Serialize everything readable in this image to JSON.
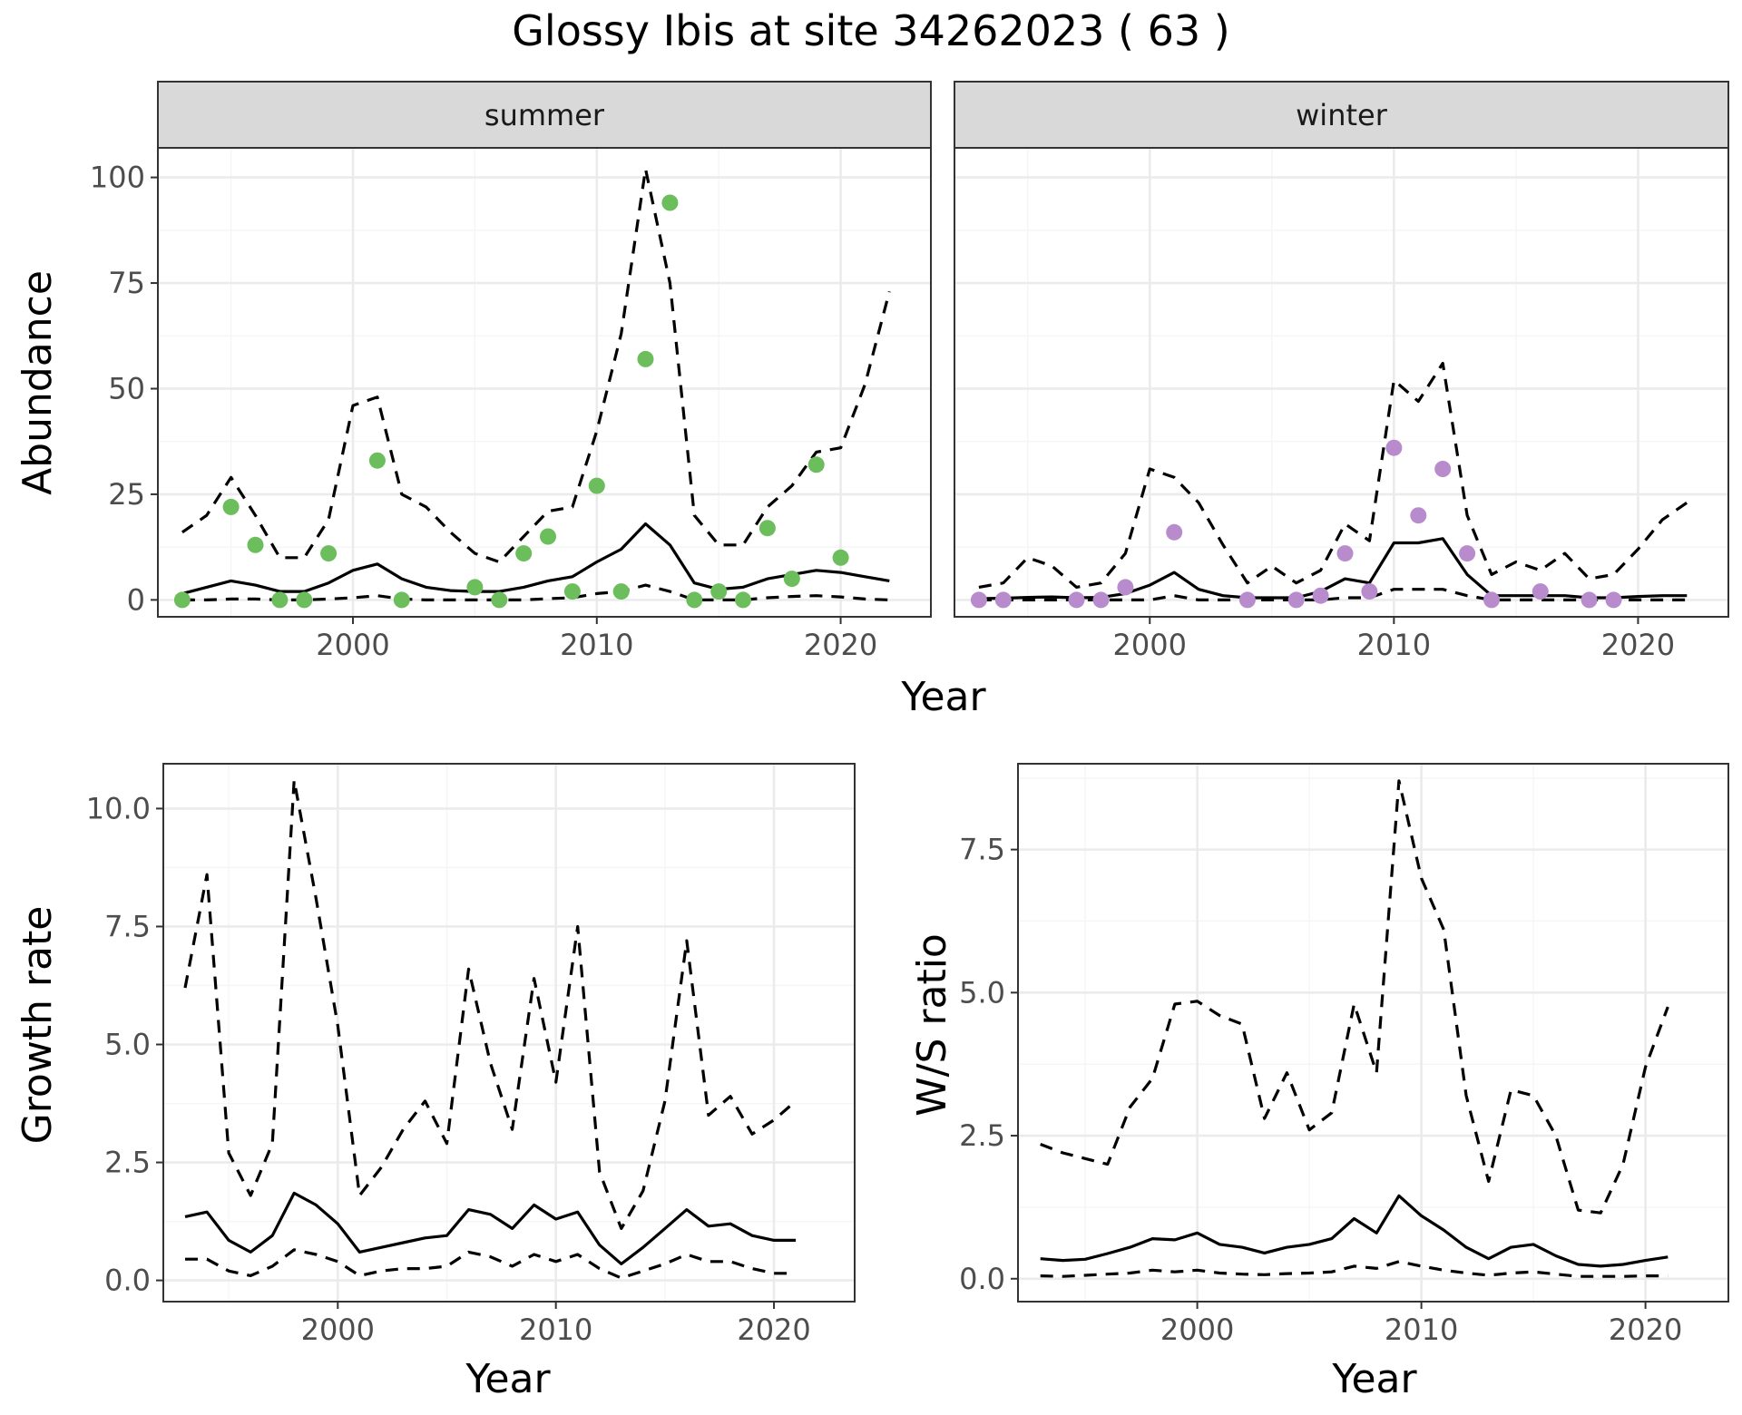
{
  "figure": {
    "title": "Glossy Ibis at site 34262023 ( 63 )"
  },
  "colors": {
    "summer_points": "#6cbd5c",
    "winter_points": "#b88ccc",
    "lines": "#000000",
    "grid_major": "#ebebeb",
    "grid_minor": "#f5f5f5",
    "strip_fill": "#d9d9d9",
    "panel_border": "#333333"
  },
  "chart_data": [
    {
      "id": "abundance",
      "type": "line",
      "panels": [
        "summer",
        "winter"
      ],
      "xlabel": "Year",
      "ylabel": "Abundance",
      "xlim": [
        1992,
        2023.7
      ],
      "ylim": [
        -4,
        107
      ],
      "xticks": [
        2000,
        2010,
        2020
      ],
      "yticks": [
        0,
        25,
        50,
        75,
        100
      ],
      "grid": true,
      "facets": [
        {
          "name": "summer",
          "point_color": "#6cbd5c",
          "median": {
            "x": [
              1993,
              1994,
              1995,
              1996,
              1997,
              1998,
              1999,
              2000,
              2001,
              2002,
              2003,
              2004,
              2005,
              2006,
              2007,
              2008,
              2009,
              2010,
              2011,
              2012,
              2013,
              2014,
              2015,
              2016,
              2017,
              2018,
              2019,
              2020,
              2021,
              2022
            ],
            "y": [
              1.5,
              3,
              4.5,
              3.5,
              2,
              2,
              4,
              7,
              8.5,
              5,
              3,
              2.2,
              2,
              2,
              3,
              4.5,
              5.5,
              9,
              12,
              18,
              13,
              4,
              2.5,
              3,
              5,
              6,
              7,
              6.5,
              5.5,
              4.5
            ]
          },
          "upper": {
            "x": [
              1993,
              1994,
              1995,
              1996,
              1997,
              1998,
              1999,
              2000,
              2001,
              2002,
              2003,
              2004,
              2005,
              2006,
              2007,
              2008,
              2009,
              2010,
              2011,
              2012,
              2013,
              2014,
              2015,
              2016,
              2017,
              2018,
              2019,
              2020,
              2021,
              2022
            ],
            "y": [
              16,
              20,
              29,
              20,
              10,
              10,
              19,
              46,
              48,
              25,
              22,
              16,
              11,
              9,
              15,
              21,
              22,
              40,
              63,
              102,
              75,
              20,
              13,
              13,
              22,
              27,
              35,
              36,
              51,
              73
            ]
          },
          "lower": {
            "x": [
              1993,
              1994,
              1995,
              1996,
              1997,
              1998,
              1999,
              2000,
              2001,
              2002,
              2003,
              2004,
              2005,
              2006,
              2007,
              2008,
              2009,
              2010,
              2011,
              2012,
              2013,
              2014,
              2015,
              2016,
              2017,
              2018,
              2019,
              2020,
              2021,
              2022
            ],
            "y": [
              0,
              0,
              0.2,
              0.2,
              0,
              0,
              0.2,
              0.5,
              1,
              0.2,
              0,
              0,
              0,
              0,
              0,
              0.3,
              0.5,
              1.5,
              2,
              3.5,
              2,
              0,
              0,
              0,
              0.5,
              0.8,
              1,
              0.7,
              0.2,
              0
            ]
          },
          "observed": {
            "x": [
              1993,
              1995,
              1996,
              1997,
              1998,
              1999,
              2001,
              2002,
              2005,
              2006,
              2007,
              2008,
              2009,
              2010,
              2011,
              2012,
              2013,
              2014,
              2015,
              2016,
              2017,
              2018,
              2019,
              2020
            ],
            "y": [
              0,
              22,
              13,
              0,
              0,
              11,
              33,
              0,
              3,
              0,
              11,
              15,
              2,
              27,
              2,
              57,
              94,
              0,
              2,
              0,
              17,
              5,
              32,
              10
            ]
          }
        },
        {
          "name": "winter",
          "point_color": "#b88ccc",
          "median": {
            "x": [
              1993,
              1994,
              1995,
              1996,
              1997,
              1998,
              1999,
              2000,
              2001,
              2002,
              2003,
              2004,
              2005,
              2006,
              2007,
              2008,
              2009,
              2010,
              2011,
              2012,
              2013,
              2014,
              2015,
              2016,
              2017,
              2018,
              2019,
              2020,
              2021,
              2022
            ],
            "y": [
              0.3,
              0.4,
              0.6,
              0.7,
              0.5,
              0.6,
              1.5,
              3.5,
              6.5,
              2.5,
              1,
              0.5,
              0.5,
              0.5,
              2,
              5,
              4,
              13.5,
              13.5,
              14.5,
              6,
              1,
              1,
              1,
              1,
              0.5,
              0.5,
              0.8,
              1,
              1
            ]
          },
          "upper": {
            "x": [
              1993,
              1994,
              1995,
              1996,
              1997,
              1998,
              1999,
              2000,
              2001,
              2002,
              2003,
              2004,
              2005,
              2006,
              2007,
              2008,
              2009,
              2010,
              2011,
              2012,
              2013,
              2014,
              2015,
              2016,
              2017,
              2018,
              2019,
              2020,
              2021,
              2022
            ],
            "y": [
              3,
              4,
              10,
              8,
              3,
              4,
              11,
              31,
              29,
              23,
              13,
              4,
              8,
              4,
              7,
              18,
              14,
              52,
              47,
              56,
              20,
              6,
              9,
              7,
              11,
              5,
              6,
              12,
              19,
              23
            ]
          },
          "lower": {
            "x": [
              1993,
              1994,
              1995,
              1996,
              1997,
              1998,
              1999,
              2000,
              2001,
              2002,
              2003,
              2004,
              2005,
              2006,
              2007,
              2008,
              2009,
              2010,
              2011,
              2012,
              2013,
              2014,
              2015,
              2016,
              2017,
              2018,
              2019,
              2020,
              2021,
              2022
            ],
            "y": [
              0,
              0,
              0,
              0,
              0,
              0,
              0,
              0,
              1,
              0,
              0,
              0,
              0,
              0,
              0,
              0.5,
              0.5,
              2.5,
              2.5,
              2.5,
              1,
              0,
              0,
              0,
              0,
              0,
              0,
              0,
              0,
              0
            ]
          },
          "observed": {
            "x": [
              1993,
              1994,
              1997,
              1998,
              1999,
              2001,
              2004,
              2006,
              2007,
              2008,
              2009,
              2010,
              2011,
              2012,
              2013,
              2014,
              2016,
              2018,
              2019
            ],
            "y": [
              0,
              0,
              0,
              0,
              3,
              16,
              0,
              0,
              1,
              11,
              2,
              36,
              20,
              31,
              11,
              0,
              2,
              0,
              0
            ]
          }
        }
      ]
    },
    {
      "id": "growth",
      "type": "line",
      "xlabel": "Year",
      "ylabel": "Growth rate",
      "xlim": [
        1992,
        2023.7
      ],
      "ylim": [
        -0.45,
        10.95
      ],
      "xticks": [
        2000,
        2010,
        2020
      ],
      "yticks": [
        0.0,
        2.5,
        5.0,
        7.5,
        10.0
      ],
      "ytick_labels": [
        "0.0",
        "2.5",
        "5.0",
        "7.5",
        "10.0"
      ],
      "grid": true,
      "median": {
        "x": [
          1993,
          1994,
          1995,
          1996,
          1997,
          1998,
          1999,
          2000,
          2001,
          2002,
          2003,
          2004,
          2005,
          2006,
          2007,
          2008,
          2009,
          2010,
          2011,
          2012,
          2013,
          2014,
          2015,
          2016,
          2017,
          2018,
          2019,
          2020,
          2021
        ],
        "y": [
          1.35,
          1.45,
          0.85,
          0.6,
          0.95,
          1.85,
          1.6,
          1.2,
          0.6,
          0.7,
          0.8,
          0.9,
          0.95,
          1.5,
          1.4,
          1.1,
          1.6,
          1.3,
          1.45,
          0.75,
          0.35,
          0.7,
          1.1,
          1.5,
          1.15,
          1.2,
          0.95,
          0.85,
          0.85
        ]
      },
      "upper": {
        "x": [
          1993,
          1994,
          1995,
          1996,
          1997,
          1998,
          1999,
          2000,
          2001,
          2002,
          2003,
          2004,
          2005,
          2006,
          2007,
          2008,
          2009,
          2010,
          2011,
          2012,
          2013,
          2014,
          2015,
          2016,
          2017,
          2018,
          2019,
          2020,
          2021
        ],
        "y": [
          6.2,
          8.6,
          2.7,
          1.8,
          2.9,
          10.6,
          8.1,
          5.4,
          1.8,
          2.4,
          3.2,
          3.8,
          2.9,
          6.6,
          4.6,
          3.2,
          6.4,
          4.2,
          7.5,
          2.3,
          1.1,
          1.9,
          3.8,
          7.2,
          3.5,
          3.9,
          3.1,
          3.4,
          3.8
        ]
      },
      "lower": {
        "x": [
          1993,
          1994,
          1995,
          1996,
          1997,
          1998,
          1999,
          2000,
          2001,
          2002,
          2003,
          2004,
          2005,
          2006,
          2007,
          2008,
          2009,
          2010,
          2011,
          2012,
          2013,
          2014,
          2015,
          2016,
          2017,
          2018,
          2019,
          2020,
          2021
        ],
        "y": [
          0.45,
          0.45,
          0.2,
          0.1,
          0.3,
          0.65,
          0.55,
          0.4,
          0.1,
          0.2,
          0.25,
          0.25,
          0.3,
          0.6,
          0.5,
          0.3,
          0.55,
          0.4,
          0.55,
          0.25,
          0.05,
          0.2,
          0.35,
          0.55,
          0.4,
          0.4,
          0.25,
          0.15,
          0.15
        ]
      }
    },
    {
      "id": "ratio",
      "type": "line",
      "xlabel": "Year",
      "ylabel": "W/S ratio",
      "xlim": [
        1992,
        2023.7
      ],
      "ylim": [
        -0.4,
        9.0
      ],
      "xticks": [
        2000,
        2010,
        2020
      ],
      "yticks": [
        0.0,
        2.5,
        5.0,
        7.5
      ],
      "ytick_labels": [
        "0.0",
        "2.5",
        "5.0",
        "7.5"
      ],
      "grid": true,
      "median": {
        "x": [
          1993,
          1994,
          1995,
          1996,
          1997,
          1998,
          1999,
          2000,
          2001,
          2002,
          2003,
          2004,
          2005,
          2006,
          2007,
          2008,
          2009,
          2010,
          2011,
          2012,
          2013,
          2014,
          2015,
          2016,
          2017,
          2018,
          2019,
          2020,
          2021
        ],
        "y": [
          0.35,
          0.32,
          0.34,
          0.44,
          0.55,
          0.7,
          0.68,
          0.8,
          0.6,
          0.55,
          0.45,
          0.55,
          0.6,
          0.7,
          1.05,
          0.8,
          1.45,
          1.1,
          0.85,
          0.55,
          0.35,
          0.55,
          0.6,
          0.4,
          0.25,
          0.22,
          0.25,
          0.32,
          0.38
        ]
      },
      "upper": {
        "x": [
          1993,
          1994,
          1995,
          1996,
          1997,
          1998,
          1999,
          2000,
          2001,
          2002,
          2003,
          2004,
          2005,
          2006,
          2007,
          2008,
          2009,
          2010,
          2011,
          2012,
          2013,
          2014,
          2015,
          2016,
          2017,
          2018,
          2019,
          2020,
          2021
        ],
        "y": [
          2.35,
          2.2,
          2.1,
          2.0,
          3.0,
          3.5,
          4.8,
          4.85,
          4.6,
          4.45,
          2.8,
          3.6,
          2.6,
          2.9,
          4.8,
          3.6,
          8.7,
          7.0,
          6.1,
          3.2,
          1.7,
          3.3,
          3.2,
          2.5,
          1.2,
          1.15,
          2.0,
          3.7,
          4.75
        ]
      },
      "lower": {
        "x": [
          1993,
          1994,
          1995,
          1996,
          1997,
          1998,
          1999,
          2000,
          2001,
          2002,
          2003,
          2004,
          2005,
          2006,
          2007,
          2008,
          2009,
          2010,
          2011,
          2012,
          2013,
          2014,
          2015,
          2016,
          2017,
          2018,
          2019,
          2020,
          2021
        ],
        "y": [
          0.05,
          0.04,
          0.06,
          0.08,
          0.1,
          0.15,
          0.12,
          0.15,
          0.1,
          0.08,
          0.07,
          0.09,
          0.1,
          0.12,
          0.22,
          0.18,
          0.3,
          0.22,
          0.15,
          0.1,
          0.06,
          0.1,
          0.12,
          0.08,
          0.04,
          0.04,
          0.04,
          0.05,
          0.05
        ]
      }
    }
  ]
}
